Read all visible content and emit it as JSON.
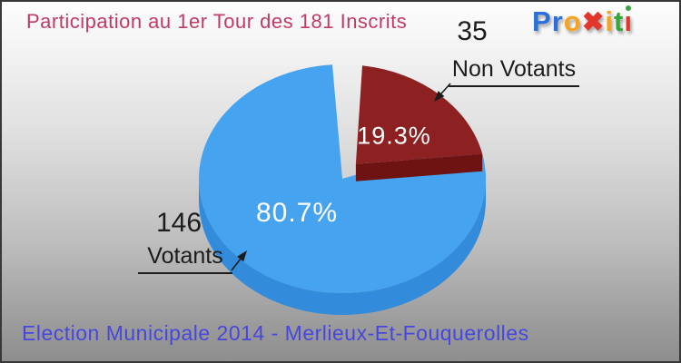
{
  "header": {
    "title": "Participation au 1er Tour des 181 Inscrits",
    "color": "#c23a63"
  },
  "footer": {
    "text": "Election Municipale 2014 - Merlieux-Et-Fouquerolles",
    "color": "#4747e0"
  },
  "logo": {
    "name": "Proxiti",
    "letters": [
      {
        "ch": "P",
        "color": "#2b6fd8"
      },
      {
        "ch": "r",
        "color": "#2b6fd8"
      },
      {
        "ch": "o",
        "color": "#f6a41f"
      },
      {
        "ch": "✖",
        "color": "#e2372a",
        "x": true
      },
      {
        "ch": "i",
        "color": "#f6a41f"
      },
      {
        "ch": "t",
        "color": "#35a63a"
      },
      {
        "ch": "i",
        "color": "#e2372a",
        "dot": "#35a63a"
      }
    ]
  },
  "chart_data": {
    "type": "pie",
    "style": "3d-exploded",
    "title": "Participation au 1er Tour des 181 Inscrits",
    "subtitle": "Election Municipale 2014 - Merlieux-Et-Fouquerolles",
    "total": 181,
    "total_label": "181 Inscrits",
    "direction": "clockwise",
    "start_angle_clockwise_from_top_deg": 8,
    "labels": "percent inside slices, counts and names as outside callouts with arrows",
    "slices": [
      {
        "label": "Non Votants",
        "value": 35,
        "pct": 19.3,
        "pct_label": "19.3%",
        "color": "#8d2121",
        "side_color": "#6f1212",
        "exploded": true
      },
      {
        "label": "Votants",
        "value": 146,
        "pct": 80.7,
        "pct_label": "80.7%",
        "color": "#45a3ef",
        "side_color": "#338cdb",
        "exploded": false
      }
    ]
  }
}
